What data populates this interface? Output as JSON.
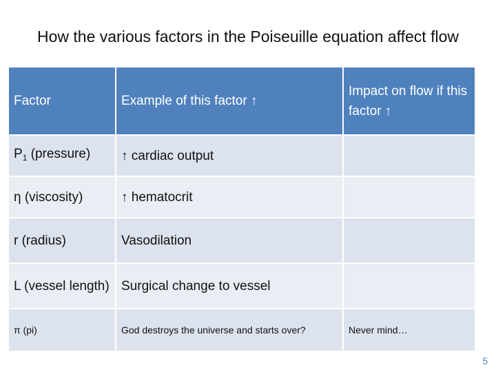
{
  "title": "How the various factors in the Poiseuille equation affect flow",
  "table": {
    "headers": {
      "factor": "Factor",
      "example": "Example of this factor ↑",
      "impact": "Impact on flow if this factor ↑"
    },
    "rows": [
      {
        "factor": "P",
        "factor_sub": "1",
        "factor_rest": " (pressure)",
        "example": "↑ cardiac output",
        "impact": ""
      },
      {
        "factor": "η (viscosity)",
        "example": "↑ hematocrit",
        "impact": ""
      },
      {
        "factor": "r (radius)",
        "example": "Vasodilation",
        "impact": ""
      },
      {
        "factor": "L (vessel length)",
        "example": "Surgical change to vessel",
        "impact": ""
      },
      {
        "factor": "π (pi)",
        "example": "God destroys the universe and starts over?",
        "impact": "Never mind…"
      }
    ]
  },
  "colors": {
    "header_bg": "#4f81bd",
    "row_bg_dark": "#dce3ee",
    "row_bg_light": "#e9edf4"
  },
  "page_number": "5"
}
